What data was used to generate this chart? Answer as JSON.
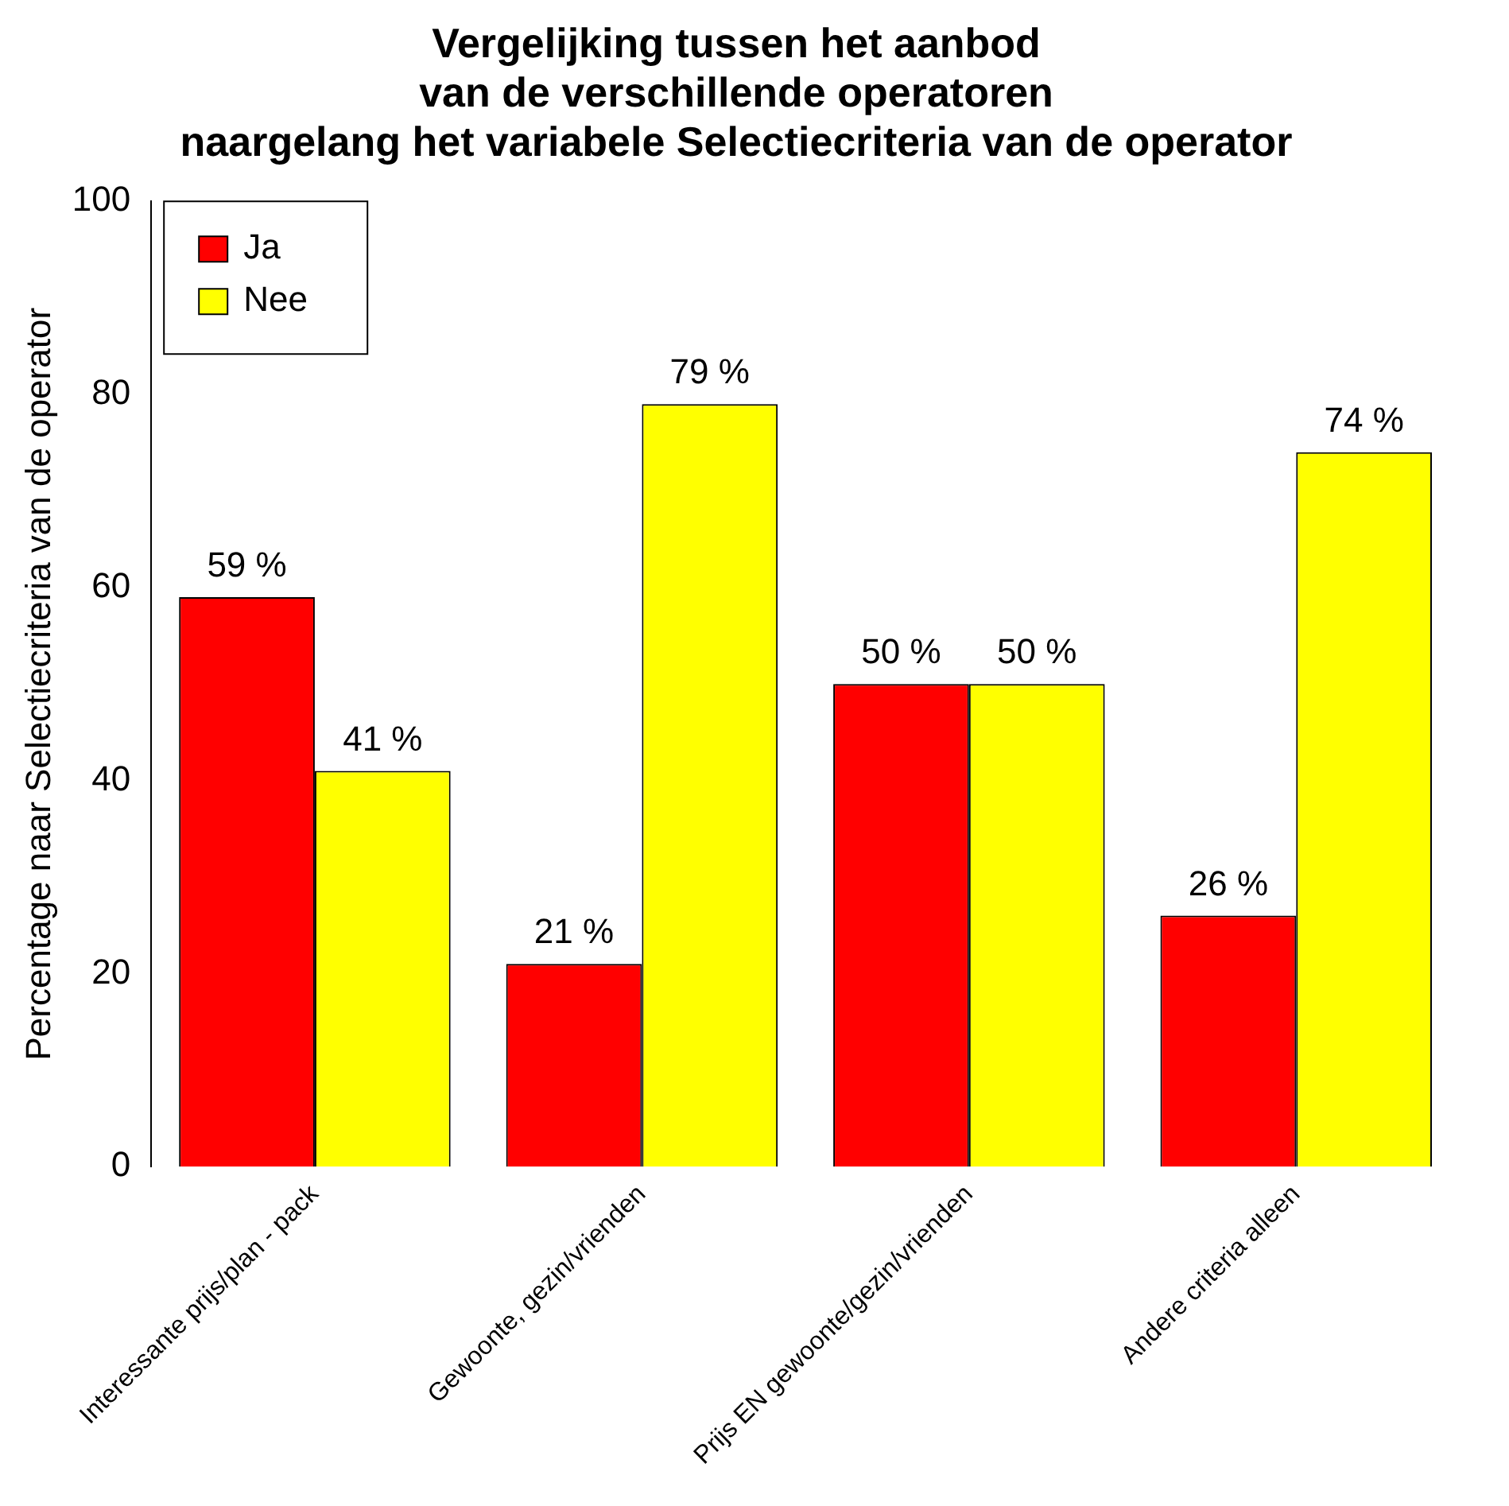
{
  "chart_data": {
    "type": "bar",
    "title": "Vergelijking tussen het aanbod\nvan de verschillende operatoren\nnaargelang het variabele Selectiecriteria van de operator",
    "ylabel": "Percentage naar Selectiecriteria van de operator",
    "categories": [
      "Interessante prijs/plan - pack",
      "Gewoonte, gezin/vrienden",
      "Prijs EN gewoonte/gezin/vrienden",
      "Andere criteria alleen"
    ],
    "series": [
      {
        "name": "Ja",
        "color": "#ff0000",
        "values": [
          59,
          21,
          50,
          26
        ],
        "value_labels": [
          "59 %",
          "21 %",
          "50 %",
          "26 %"
        ]
      },
      {
        "name": "Nee",
        "color": "#ffff00",
        "values": [
          41,
          79,
          50,
          74
        ],
        "value_labels": [
          "41 %",
          "79 %",
          "50 %",
          "74 %"
        ]
      }
    ],
    "ylim": [
      0,
      100
    ],
    "yticks": [
      0,
      20,
      40,
      60,
      80,
      100
    ],
    "grid": false,
    "legend": "top left"
  }
}
